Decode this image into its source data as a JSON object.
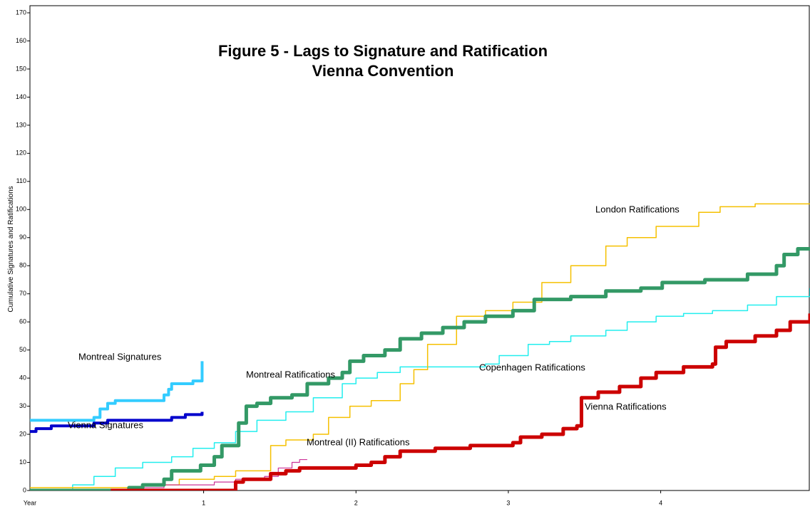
{
  "chart_data": {
    "type": "line",
    "step": true,
    "title": "Figure 5 - Lags to Signature and Ratification",
    "subtitle": "Vienna Convention",
    "y_label": "Cumulative Signatures and Ratifications",
    "x_label": "Year",
    "xlim": [
      -0.14,
      4.98
    ],
    "xticks": [
      1,
      2,
      3,
      4
    ],
    "ylim": [
      0,
      170
    ],
    "yticks": [
      0,
      10,
      20,
      30,
      40,
      50,
      60,
      70,
      80,
      90,
      100,
      110,
      120,
      130,
      140,
      150,
      160,
      170
    ],
    "series": [
      {
        "name": "Copenhagen Ratifications",
        "color": "#22eeee",
        "width": 1.5,
        "x": [
          -0.14,
          0.04,
          0.14,
          0.28,
          0.42,
          0.6,
          0.79,
          0.93,
          1.07,
          1.21,
          1.35,
          1.54,
          1.72,
          1.91,
          2.0,
          2.14,
          2.29,
          2.85,
          2.94,
          3.13,
          3.27,
          3.41,
          3.64,
          3.78,
          3.97,
          4.15,
          4.34,
          4.57,
          4.76,
          4.98
        ],
        "values": [
          0,
          0,
          2,
          5,
          8,
          10,
          12,
          15,
          17,
          21,
          25,
          28,
          33,
          38,
          40,
          42,
          44,
          45,
          48,
          52,
          53,
          55,
          57,
          60,
          62,
          63,
          64,
          66,
          69,
          72
        ]
      },
      {
        "name": "London Ratifications",
        "color": "#f5c000",
        "width": 1.5,
        "x": [
          -0.14,
          0.14,
          0.6,
          0.84,
          1.07,
          1.21,
          1.4,
          1.44,
          1.54,
          1.72,
          1.82,
          1.96,
          2.1,
          2.29,
          2.38,
          2.47,
          2.66,
          2.85,
          3.03,
          3.22,
          3.41,
          3.64,
          3.78,
          3.97,
          4.25,
          4.39,
          4.62,
          4.98
        ],
        "values": [
          1,
          1,
          2,
          4,
          5,
          7,
          7,
          16,
          18,
          20,
          26,
          30,
          32,
          38,
          43,
          52,
          62,
          64,
          67,
          74,
          80,
          87,
          90,
          94,
          99,
          101,
          102,
          102
        ]
      },
      {
        "name": "Montreal (II) Ratifications",
        "color": "#cc3399",
        "width": 1.2,
        "x": [
          -0.14,
          0.37,
          0.51,
          0.74,
          1.07,
          1.21,
          1.4,
          1.49,
          1.58,
          1.63,
          1.68
        ],
        "values": [
          0,
          0,
          1,
          2,
          3,
          4,
          5,
          8,
          10,
          11,
          11
        ]
      },
      {
        "name": "Montreal Signatures",
        "color": "#33ccff",
        "width": 4,
        "x": [
          -0.14,
          0.14,
          0.28,
          0.32,
          0.37,
          0.42,
          0.71,
          0.74,
          0.77,
          0.79,
          0.93,
          0.99
        ],
        "values": [
          25,
          25,
          26,
          29,
          31,
          32,
          32,
          34,
          36,
          38,
          39,
          46
        ]
      },
      {
        "name": "Vienna Signatures",
        "color": "#0000cc",
        "width": 4,
        "x": [
          -0.14,
          -0.1,
          0,
          0.14,
          0.28,
          0.37,
          0.6,
          0.79,
          0.88,
          0.99
        ],
        "values": [
          21,
          22,
          23,
          23,
          24,
          25,
          25,
          26,
          27,
          28
        ]
      },
      {
        "name": "Montreal Ratifications",
        "color": "#339966",
        "width": 5,
        "x": [
          -0.14,
          0.46,
          0.51,
          0.6,
          0.74,
          0.79,
          0.98,
          1.07,
          1.12,
          1.21,
          1.23,
          1.28,
          1.35,
          1.44,
          1.58,
          1.68,
          1.82,
          1.91,
          1.96,
          2.05,
          2.19,
          2.29,
          2.43,
          2.57,
          2.71,
          2.85,
          3.03,
          3.17,
          3.41,
          3.64,
          3.87,
          4.01,
          4.29,
          4.57,
          4.76,
          4.81,
          4.9,
          4.98
        ],
        "values": [
          0,
          0,
          1,
          2,
          4,
          7,
          9,
          12,
          16,
          16,
          24,
          30,
          31,
          33,
          34,
          38,
          40,
          42,
          46,
          48,
          50,
          54,
          56,
          58,
          60,
          62,
          64,
          68,
          69,
          71,
          72,
          74,
          75,
          77,
          80,
          84,
          86,
          86
        ]
      },
      {
        "name": "Vienna Ratifications",
        "color": "#cc0000",
        "width": 5,
        "x": [
          0.39,
          1.16,
          1.21,
          1.26,
          1.44,
          1.54,
          1.63,
          2.0,
          2.1,
          2.19,
          2.29,
          2.52,
          2.75,
          3.03,
          3.08,
          3.22,
          3.36,
          3.45,
          3.48,
          3.59,
          3.73,
          3.87,
          3.97,
          4.15,
          4.34,
          4.36,
          4.43,
          4.62,
          4.76,
          4.85,
          4.98
        ],
        "values": [
          0,
          0,
          3,
          4,
          6,
          7,
          8,
          9,
          10,
          12,
          14,
          15,
          16,
          17,
          19,
          20,
          22,
          23,
          33,
          35,
          37,
          40,
          42,
          44,
          45,
          51,
          53,
          55,
          57,
          60,
          63
        ]
      }
    ]
  }
}
